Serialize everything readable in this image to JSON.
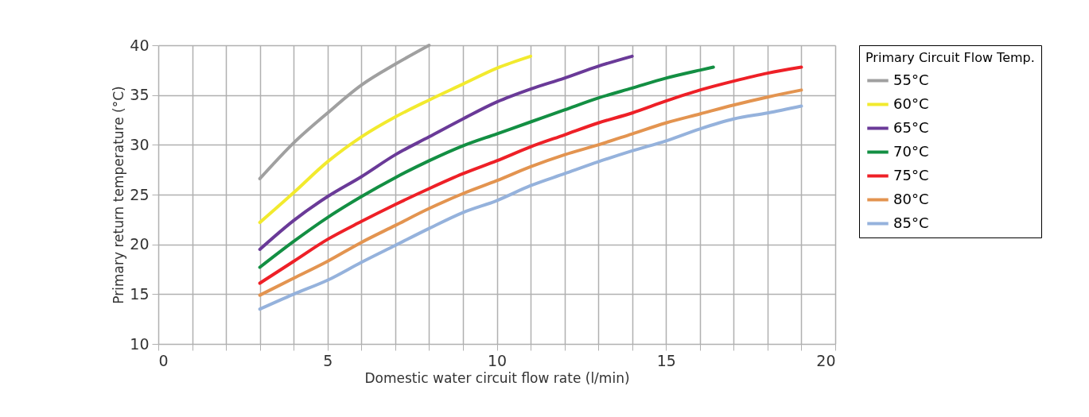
{
  "chart_data": {
    "type": "line",
    "xlabel": "Domestic water circuit flow rate (l/min)",
    "ylabel": "Primary return temperature (°C)",
    "legend_title": "Primary Circuit Flow Temp.",
    "legend": "right",
    "grid": true,
    "line_style": "solid",
    "marker": "none",
    "xlim": [
      0,
      20
    ],
    "ylim": [
      10,
      40
    ],
    "xticks": [
      0,
      {
        "value": 1,
        "label": null
      },
      {
        "value": 2,
        "label": null
      },
      {
        "value": 3,
        "label": null
      },
      {
        "value": 4,
        "label": null
      },
      5,
      {
        "value": 6,
        "label": null
      },
      {
        "value": 7,
        "label": null
      },
      {
        "value": 8,
        "label": null
      },
      {
        "value": 9,
        "label": null
      },
      10,
      {
        "value": 11,
        "label": null
      },
      {
        "value": 12,
        "label": null
      },
      {
        "value": 13,
        "label": null
      },
      {
        "value": 14,
        "label": null
      },
      15,
      {
        "value": 16,
        "label": null
      },
      {
        "value": 17,
        "label": null
      },
      {
        "value": 18,
        "label": null
      },
      {
        "value": 19,
        "label": null
      },
      20
    ],
    "yticks": [
      10,
      15,
      20,
      25,
      30,
      35,
      40
    ],
    "series": [
      {
        "name": "55°C",
        "color": "#a0a0a0",
        "x": [
          3,
          4,
          5,
          6,
          7,
          8
        ],
        "values": [
          26.6,
          30.2,
          33.2,
          36.0,
          38.1,
          40
        ]
      },
      {
        "name": "60°C",
        "color": "#f2ea2e",
        "x": [
          3,
          4,
          5,
          6,
          7,
          8,
          9,
          10,
          11
        ],
        "values": [
          22.2,
          25.2,
          28.3,
          30.8,
          32.8,
          34.5,
          36.1,
          37.7,
          38.9
        ]
      },
      {
        "name": "65°C",
        "color": "#6a3a98",
        "x": [
          3,
          4,
          5,
          6,
          7,
          8,
          9,
          10,
          11,
          12,
          13,
          14
        ],
        "values": [
          19.5,
          22.4,
          24.8,
          26.8,
          29.0,
          30.8,
          32.6,
          34.3,
          35.6,
          36.7,
          37.9,
          38.9
        ]
      },
      {
        "name": "70°C",
        "color": "#138f43",
        "x": [
          3,
          4,
          5,
          6,
          7,
          8,
          9,
          10,
          11,
          12,
          13,
          14,
          15,
          16,
          16.4
        ],
        "values": [
          17.7,
          20.3,
          22.7,
          24.8,
          26.7,
          28.4,
          29.9,
          31.1,
          32.3,
          33.5,
          34.7,
          35.7,
          36.7,
          37.5,
          37.8
        ]
      },
      {
        "name": "75°C",
        "color": "#ee2027",
        "x": [
          3,
          4,
          5,
          6,
          7,
          8,
          9,
          10,
          11,
          12,
          13,
          14,
          15,
          16,
          17,
          18,
          19
        ],
        "values": [
          16.1,
          18.3,
          20.5,
          22.3,
          24.0,
          25.6,
          27.1,
          28.4,
          29.8,
          31.0,
          32.2,
          33.2,
          34.4,
          35.5,
          36.4,
          37.2,
          37.8
        ]
      },
      {
        "name": "80°C",
        "color": "#e39450",
        "x": [
          3,
          4,
          5,
          6,
          7,
          8,
          9,
          10,
          11,
          12,
          13,
          14,
          15,
          16,
          17,
          18,
          19
        ],
        "values": [
          14.9,
          16.6,
          18.3,
          20.2,
          21.9,
          23.6,
          25.1,
          26.4,
          27.8,
          29.0,
          30.0,
          31.1,
          32.2,
          33.1,
          34.0,
          34.8,
          35.5
        ]
      },
      {
        "name": "85°C",
        "color": "#95b2dc",
        "x": [
          3,
          4,
          5,
          6,
          7,
          8,
          9,
          10,
          11,
          12,
          13,
          14,
          15,
          16,
          17,
          18,
          19
        ],
        "values": [
          13.5,
          15.0,
          16.4,
          18.2,
          19.9,
          21.6,
          23.2,
          24.4,
          25.9,
          27.1,
          28.3,
          29.4,
          30.4,
          31.6,
          32.6,
          33.2,
          33.9
        ]
      }
    ]
  }
}
